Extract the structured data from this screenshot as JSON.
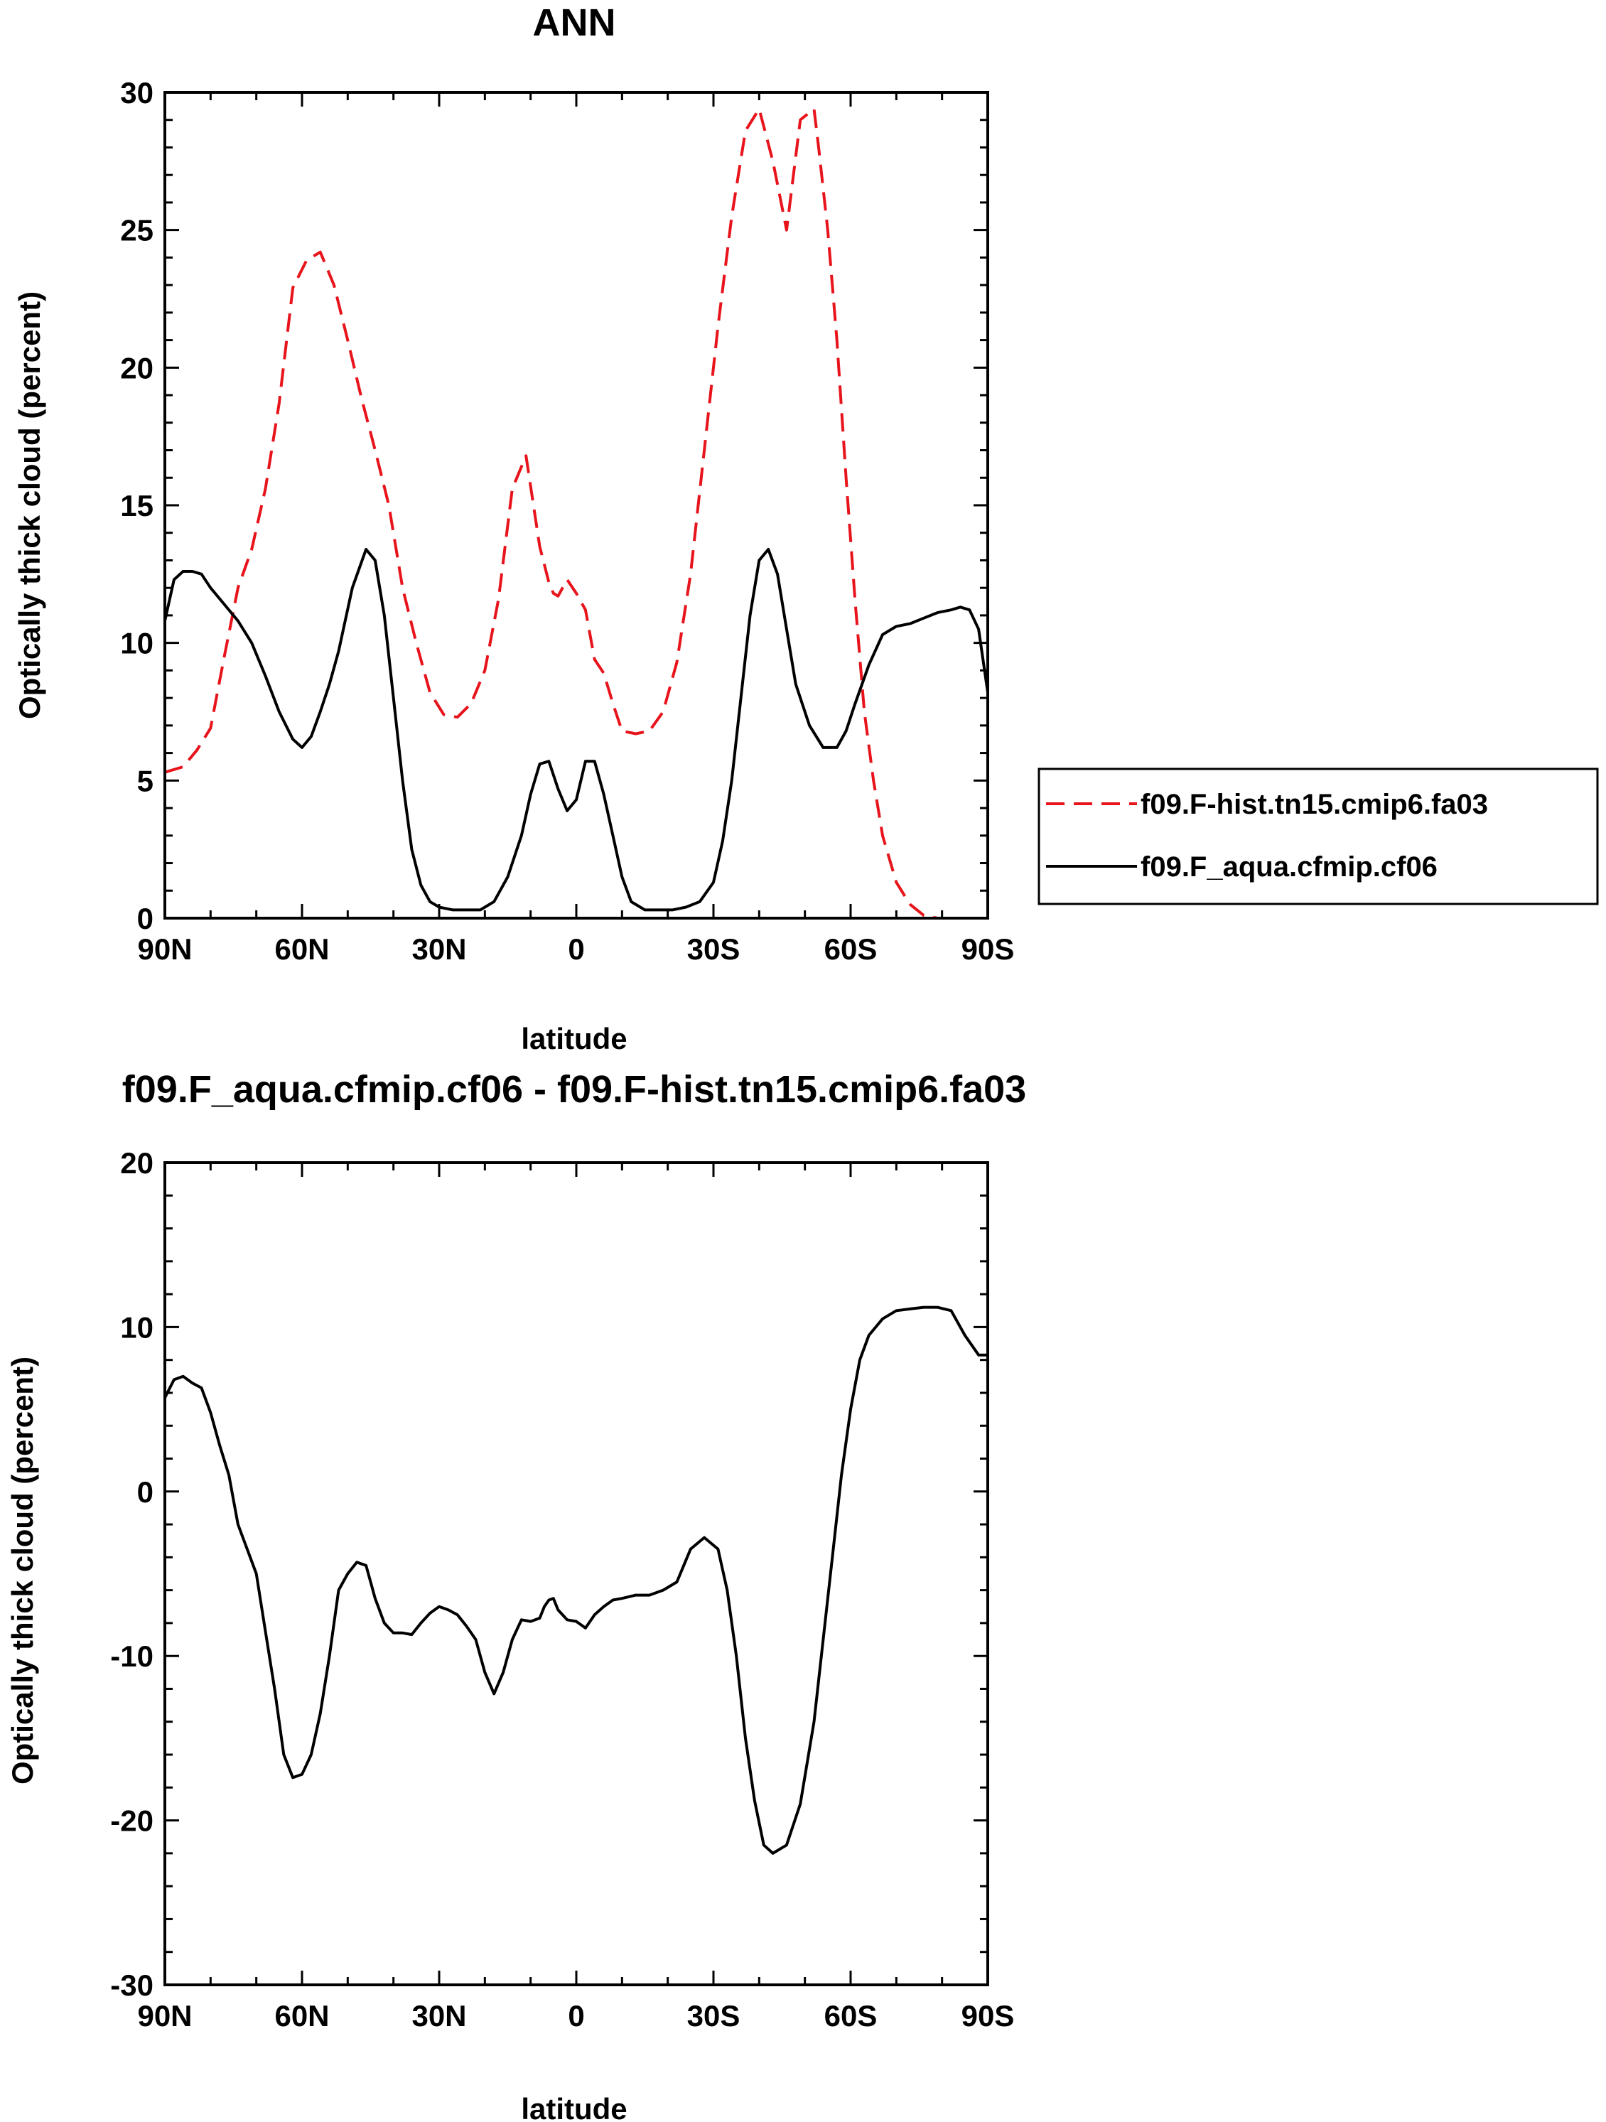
{
  "chart_data": [
    {
      "type": "line",
      "title": "ANN",
      "xlabel": "latitude",
      "ylabel": "Optically thick cloud (percent)",
      "xlim": [
        90,
        -90
      ],
      "ylim": [
        0,
        30
      ],
      "xticks": [
        90,
        60,
        30,
        0,
        -30,
        -60,
        -90
      ],
      "xtick_labels": [
        "90N",
        "60N",
        "30N",
        "0",
        "30S",
        "60S",
        "90S"
      ],
      "yticks": [
        0,
        5,
        10,
        15,
        20,
        25,
        30
      ],
      "ytick_labels": [
        "0",
        "5",
        "10",
        "15",
        "20",
        "25",
        "30"
      ],
      "legend_position": "right",
      "series": [
        {
          "name": "f09.F-hist.tn15.cmip6.fa03",
          "color": "#e8141c",
          "dash": "dashed",
          "x": [
            90,
            86,
            83,
            80,
            77,
            74,
            71,
            68,
            65,
            62,
            59,
            56,
            53,
            50,
            47,
            44,
            41,
            38,
            35,
            32,
            29,
            26,
            23,
            20,
            17,
            14,
            11,
            8,
            6,
            5,
            4,
            2,
            0,
            -2,
            -4,
            -6,
            -8,
            -10,
            -13,
            -16,
            -19,
            -22,
            -25,
            -28,
            -31,
            -34,
            -37,
            -40,
            -43,
            -46,
            -49,
            -52,
            -53,
            -55,
            -57,
            -59,
            -61,
            -63,
            -65,
            -67,
            -70,
            -73,
            -76,
            -79,
            -82,
            -85,
            -88
          ],
          "y": [
            5.3,
            5.5,
            6.1,
            6.9,
            9.5,
            12.0,
            13.4,
            15.6,
            18.7,
            22.9,
            23.9,
            24.2,
            23.0,
            21.0,
            18.9,
            17.0,
            15.0,
            12.0,
            10.0,
            8.2,
            7.4,
            7.3,
            7.8,
            9.0,
            11.6,
            15.6,
            16.8,
            13.5,
            12.2,
            11.8,
            11.7,
            12.3,
            11.8,
            11.2,
            9.4,
            8.9,
            7.8,
            6.8,
            6.7,
            6.8,
            7.5,
            9.3,
            12.5,
            17.0,
            21.5,
            25.5,
            28.6,
            29.4,
            27.5,
            25.0,
            29.0,
            29.4,
            28.0,
            25.0,
            21.0,
            16.0,
            11.5,
            7.5,
            5.0,
            3.0,
            1.3,
            0.5,
            0.1,
            0.0,
            0.0,
            0.0,
            0.0
          ]
        },
        {
          "name": "f09.F_aqua.cfmip.cf06",
          "color": "#000000",
          "dash": "solid",
          "x": [
            90,
            88,
            86,
            84,
            82,
            80,
            77,
            74,
            71,
            68,
            65,
            62,
            60,
            58,
            56,
            54,
            52,
            49,
            46,
            44,
            42,
            40,
            38,
            36,
            34,
            32,
            30,
            27,
            24,
            21,
            18,
            15,
            12,
            10,
            8,
            6,
            4,
            2,
            0,
            -2,
            -4,
            -6,
            -8,
            -10,
            -12,
            -15,
            -18,
            -21,
            -24,
            -27,
            -30,
            -32,
            -34,
            -36,
            -38,
            -40,
            -42,
            -44,
            -46,
            -48,
            -51,
            -54,
            -57,
            -59,
            -61,
            -64,
            -67,
            -70,
            -73,
            -76,
            -79,
            -82,
            -84,
            -86,
            -88,
            -90
          ],
          "y": [
            10.8,
            12.3,
            12.6,
            12.6,
            12.5,
            12.0,
            11.4,
            10.8,
            10.0,
            8.8,
            7.5,
            6.5,
            6.2,
            6.6,
            7.5,
            8.5,
            9.7,
            12.0,
            13.4,
            13.0,
            11.0,
            8.0,
            5.0,
            2.5,
            1.2,
            0.6,
            0.4,
            0.3,
            0.3,
            0.3,
            0.6,
            1.5,
            3.0,
            4.5,
            5.6,
            5.7,
            4.7,
            3.9,
            4.3,
            5.7,
            5.7,
            4.5,
            3.0,
            1.5,
            0.6,
            0.3,
            0.3,
            0.3,
            0.4,
            0.6,
            1.3,
            2.8,
            5.0,
            8.0,
            11.0,
            13.0,
            13.4,
            12.5,
            10.5,
            8.5,
            7.0,
            6.2,
            6.2,
            6.8,
            7.8,
            9.2,
            10.3,
            10.6,
            10.7,
            10.9,
            11.1,
            11.2,
            11.3,
            11.2,
            10.5,
            8.2
          ]
        }
      ]
    },
    {
      "type": "line",
      "title": "f09.F_aqua.cfmip.cf06 - f09.F-hist.tn15.cmip6.fa03",
      "xlabel": "latitude",
      "ylabel": "Optically thick cloud (percent)",
      "xlim": [
        90,
        -90
      ],
      "ylim": [
        -30,
        20
      ],
      "xticks": [
        90,
        60,
        30,
        0,
        -30,
        -60,
        -90
      ],
      "xtick_labels": [
        "90N",
        "60N",
        "30N",
        "0",
        "30S",
        "60S",
        "90S"
      ],
      "yticks": [
        -30,
        -20,
        -10,
        0,
        10,
        20
      ],
      "ytick_labels": [
        "-30",
        "-20",
        "-10",
        "0",
        "10",
        "20"
      ],
      "series": [
        {
          "color": "#000000",
          "dash": "solid",
          "x": [
            90,
            88,
            86,
            84,
            82,
            80,
            78,
            76,
            74,
            72,
            70,
            68,
            66,
            64,
            62,
            60,
            58,
            56,
            54,
            52,
            50,
            48,
            46,
            44,
            42,
            40,
            38,
            36,
            34,
            32,
            30,
            28,
            26,
            24,
            22,
            20,
            18,
            16,
            14,
            12,
            10,
            8,
            7,
            6,
            5,
            4,
            2,
            0,
            -2,
            -4,
            -6,
            -8,
            -10,
            -13,
            -16,
            -19,
            -22,
            -25,
            -28,
            -31,
            -33,
            -35,
            -37,
            -39,
            -41,
            -43,
            -46,
            -49,
            -52,
            -54,
            -56,
            -58,
            -60,
            -62,
            -64,
            -67,
            -70,
            -73,
            -76,
            -79,
            -82,
            -85,
            -88,
            -90
          ],
          "y": [
            5.7,
            6.8,
            7.0,
            6.6,
            6.3,
            4.8,
            2.8,
            1.0,
            -2.0,
            -3.5,
            -5.0,
            -8.5,
            -12.0,
            -16.0,
            -17.4,
            -17.2,
            -16.0,
            -13.5,
            -10.0,
            -6.0,
            -5.0,
            -4.3,
            -4.5,
            -6.5,
            -8.0,
            -8.6,
            -8.6,
            -8.7,
            -8.0,
            -7.4,
            -7.0,
            -7.2,
            -7.5,
            -8.2,
            -9.0,
            -11.0,
            -12.3,
            -11.0,
            -9.0,
            -7.8,
            -7.9,
            -7.7,
            -7.0,
            -6.6,
            -6.5,
            -7.2,
            -7.8,
            -7.9,
            -8.3,
            -7.5,
            -7.0,
            -6.6,
            -6.5,
            -6.3,
            -6.3,
            -6.0,
            -5.5,
            -3.5,
            -2.8,
            -3.5,
            -6.0,
            -10.0,
            -15.0,
            -18.8,
            -21.5,
            -22.0,
            -21.5,
            -19.0,
            -14.0,
            -9.0,
            -4.0,
            1.0,
            5.0,
            8.0,
            9.5,
            10.5,
            11.0,
            11.1,
            11.2,
            11.2,
            11.0,
            9.5,
            8.3,
            8.3
          ]
        }
      ]
    }
  ]
}
